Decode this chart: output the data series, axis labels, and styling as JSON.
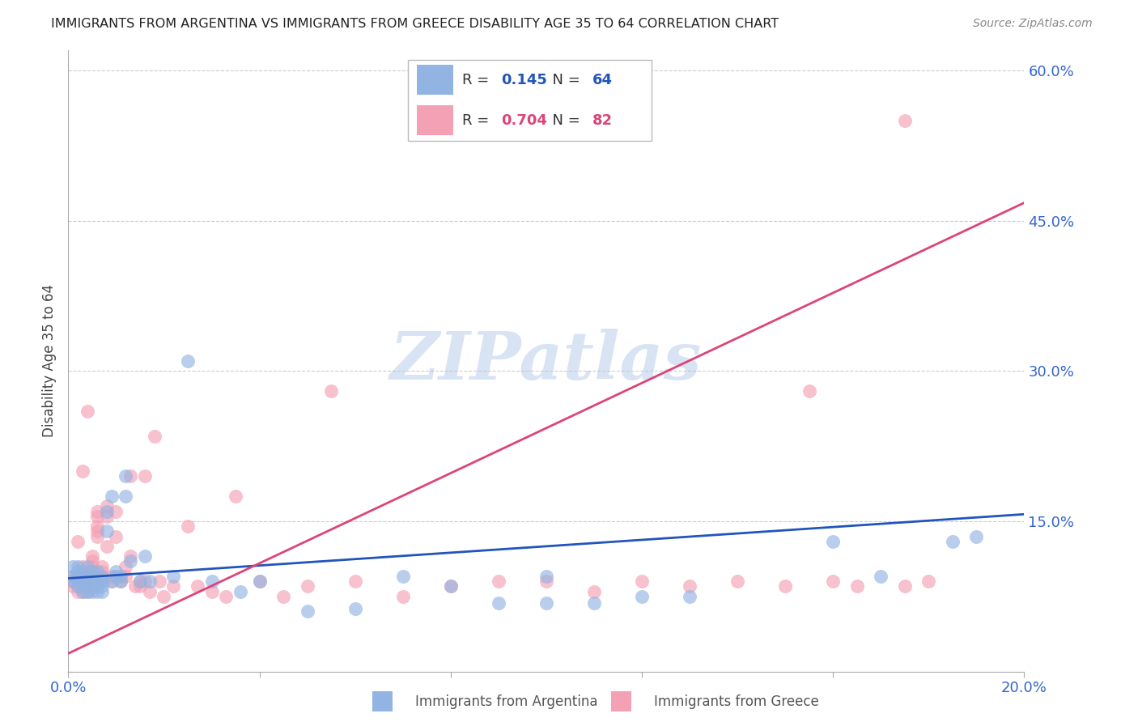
{
  "title": "IMMIGRANTS FROM ARGENTINA VS IMMIGRANTS FROM GREECE DISABILITY AGE 35 TO 64 CORRELATION CHART",
  "source": "Source: ZipAtlas.com",
  "ylabel": "Disability Age 35 to 64",
  "xlim": [
    0.0,
    0.2
  ],
  "ylim": [
    0.0,
    0.62
  ],
  "yticks": [
    0.0,
    0.15,
    0.3,
    0.45,
    0.6
  ],
  "ytick_labels": [
    "",
    "15.0%",
    "30.0%",
    "45.0%",
    "60.0%"
  ],
  "xticks": [
    0.0,
    0.04,
    0.08,
    0.12,
    0.16,
    0.2
  ],
  "xtick_labels": [
    "0.0%",
    "",
    "",
    "",
    "",
    "20.0%"
  ],
  "argentina_R": 0.145,
  "argentina_N": 64,
  "greece_R": 0.704,
  "greece_N": 82,
  "argentina_color": "#92b4e3",
  "greece_color": "#f4a0b5",
  "argentina_line_color": "#2255bb",
  "greece_line_color": "#dd4477",
  "watermark": "ZIPatlas",
  "watermark_color": "#aac4e8",
  "argentina_x": [
    0.001,
    0.001,
    0.001,
    0.002,
    0.002,
    0.002,
    0.002,
    0.002,
    0.003,
    0.003,
    0.003,
    0.003,
    0.003,
    0.004,
    0.004,
    0.004,
    0.004,
    0.004,
    0.005,
    0.005,
    0.005,
    0.005,
    0.005,
    0.006,
    0.006,
    0.006,
    0.006,
    0.007,
    0.007,
    0.007,
    0.007,
    0.008,
    0.008,
    0.009,
    0.009,
    0.01,
    0.01,
    0.011,
    0.011,
    0.012,
    0.012,
    0.013,
    0.015,
    0.016,
    0.017,
    0.022,
    0.025,
    0.03,
    0.036,
    0.04,
    0.05,
    0.06,
    0.07,
    0.08,
    0.09,
    0.1,
    0.11,
    0.13,
    0.16,
    0.17,
    0.185,
    0.19,
    0.1,
    0.12
  ],
  "argentina_y": [
    0.09,
    0.095,
    0.105,
    0.085,
    0.09,
    0.095,
    0.1,
    0.105,
    0.08,
    0.085,
    0.09,
    0.095,
    0.1,
    0.08,
    0.085,
    0.09,
    0.095,
    0.105,
    0.08,
    0.085,
    0.09,
    0.095,
    0.1,
    0.08,
    0.085,
    0.09,
    0.1,
    0.08,
    0.085,
    0.09,
    0.095,
    0.14,
    0.16,
    0.09,
    0.175,
    0.095,
    0.1,
    0.09,
    0.095,
    0.175,
    0.195,
    0.11,
    0.09,
    0.115,
    0.09,
    0.095,
    0.31,
    0.09,
    0.08,
    0.09,
    0.06,
    0.063,
    0.095,
    0.085,
    0.068,
    0.068,
    0.068,
    0.075,
    0.13,
    0.095,
    0.13,
    0.135,
    0.095,
    0.075
  ],
  "greece_x": [
    0.001,
    0.001,
    0.001,
    0.002,
    0.002,
    0.002,
    0.002,
    0.003,
    0.003,
    0.003,
    0.003,
    0.003,
    0.004,
    0.004,
    0.004,
    0.004,
    0.004,
    0.005,
    0.005,
    0.005,
    0.005,
    0.005,
    0.006,
    0.006,
    0.006,
    0.006,
    0.006,
    0.007,
    0.007,
    0.007,
    0.007,
    0.008,
    0.008,
    0.008,
    0.009,
    0.009,
    0.01,
    0.01,
    0.01,
    0.011,
    0.012,
    0.012,
    0.013,
    0.013,
    0.014,
    0.015,
    0.015,
    0.016,
    0.016,
    0.017,
    0.018,
    0.019,
    0.02,
    0.022,
    0.025,
    0.027,
    0.03,
    0.033,
    0.035,
    0.04,
    0.045,
    0.05,
    0.055,
    0.06,
    0.07,
    0.08,
    0.09,
    0.1,
    0.11,
    0.12,
    0.13,
    0.14,
    0.15,
    0.155,
    0.16,
    0.165,
    0.175,
    0.18,
    0.002,
    0.003,
    0.004,
    0.175
  ],
  "greece_y": [
    0.085,
    0.09,
    0.095,
    0.08,
    0.085,
    0.09,
    0.095,
    0.08,
    0.085,
    0.09,
    0.095,
    0.105,
    0.08,
    0.085,
    0.09,
    0.095,
    0.1,
    0.095,
    0.1,
    0.105,
    0.11,
    0.115,
    0.135,
    0.14,
    0.145,
    0.155,
    0.16,
    0.09,
    0.095,
    0.1,
    0.105,
    0.125,
    0.155,
    0.165,
    0.09,
    0.095,
    0.095,
    0.135,
    0.16,
    0.09,
    0.095,
    0.105,
    0.115,
    0.195,
    0.085,
    0.085,
    0.09,
    0.09,
    0.195,
    0.08,
    0.235,
    0.09,
    0.075,
    0.085,
    0.145,
    0.085,
    0.08,
    0.075,
    0.175,
    0.09,
    0.075,
    0.085,
    0.28,
    0.09,
    0.075,
    0.085,
    0.09,
    0.09,
    0.08,
    0.09,
    0.085,
    0.09,
    0.085,
    0.28,
    0.09,
    0.085,
    0.085,
    0.09,
    0.13,
    0.2,
    0.26,
    0.55
  ]
}
